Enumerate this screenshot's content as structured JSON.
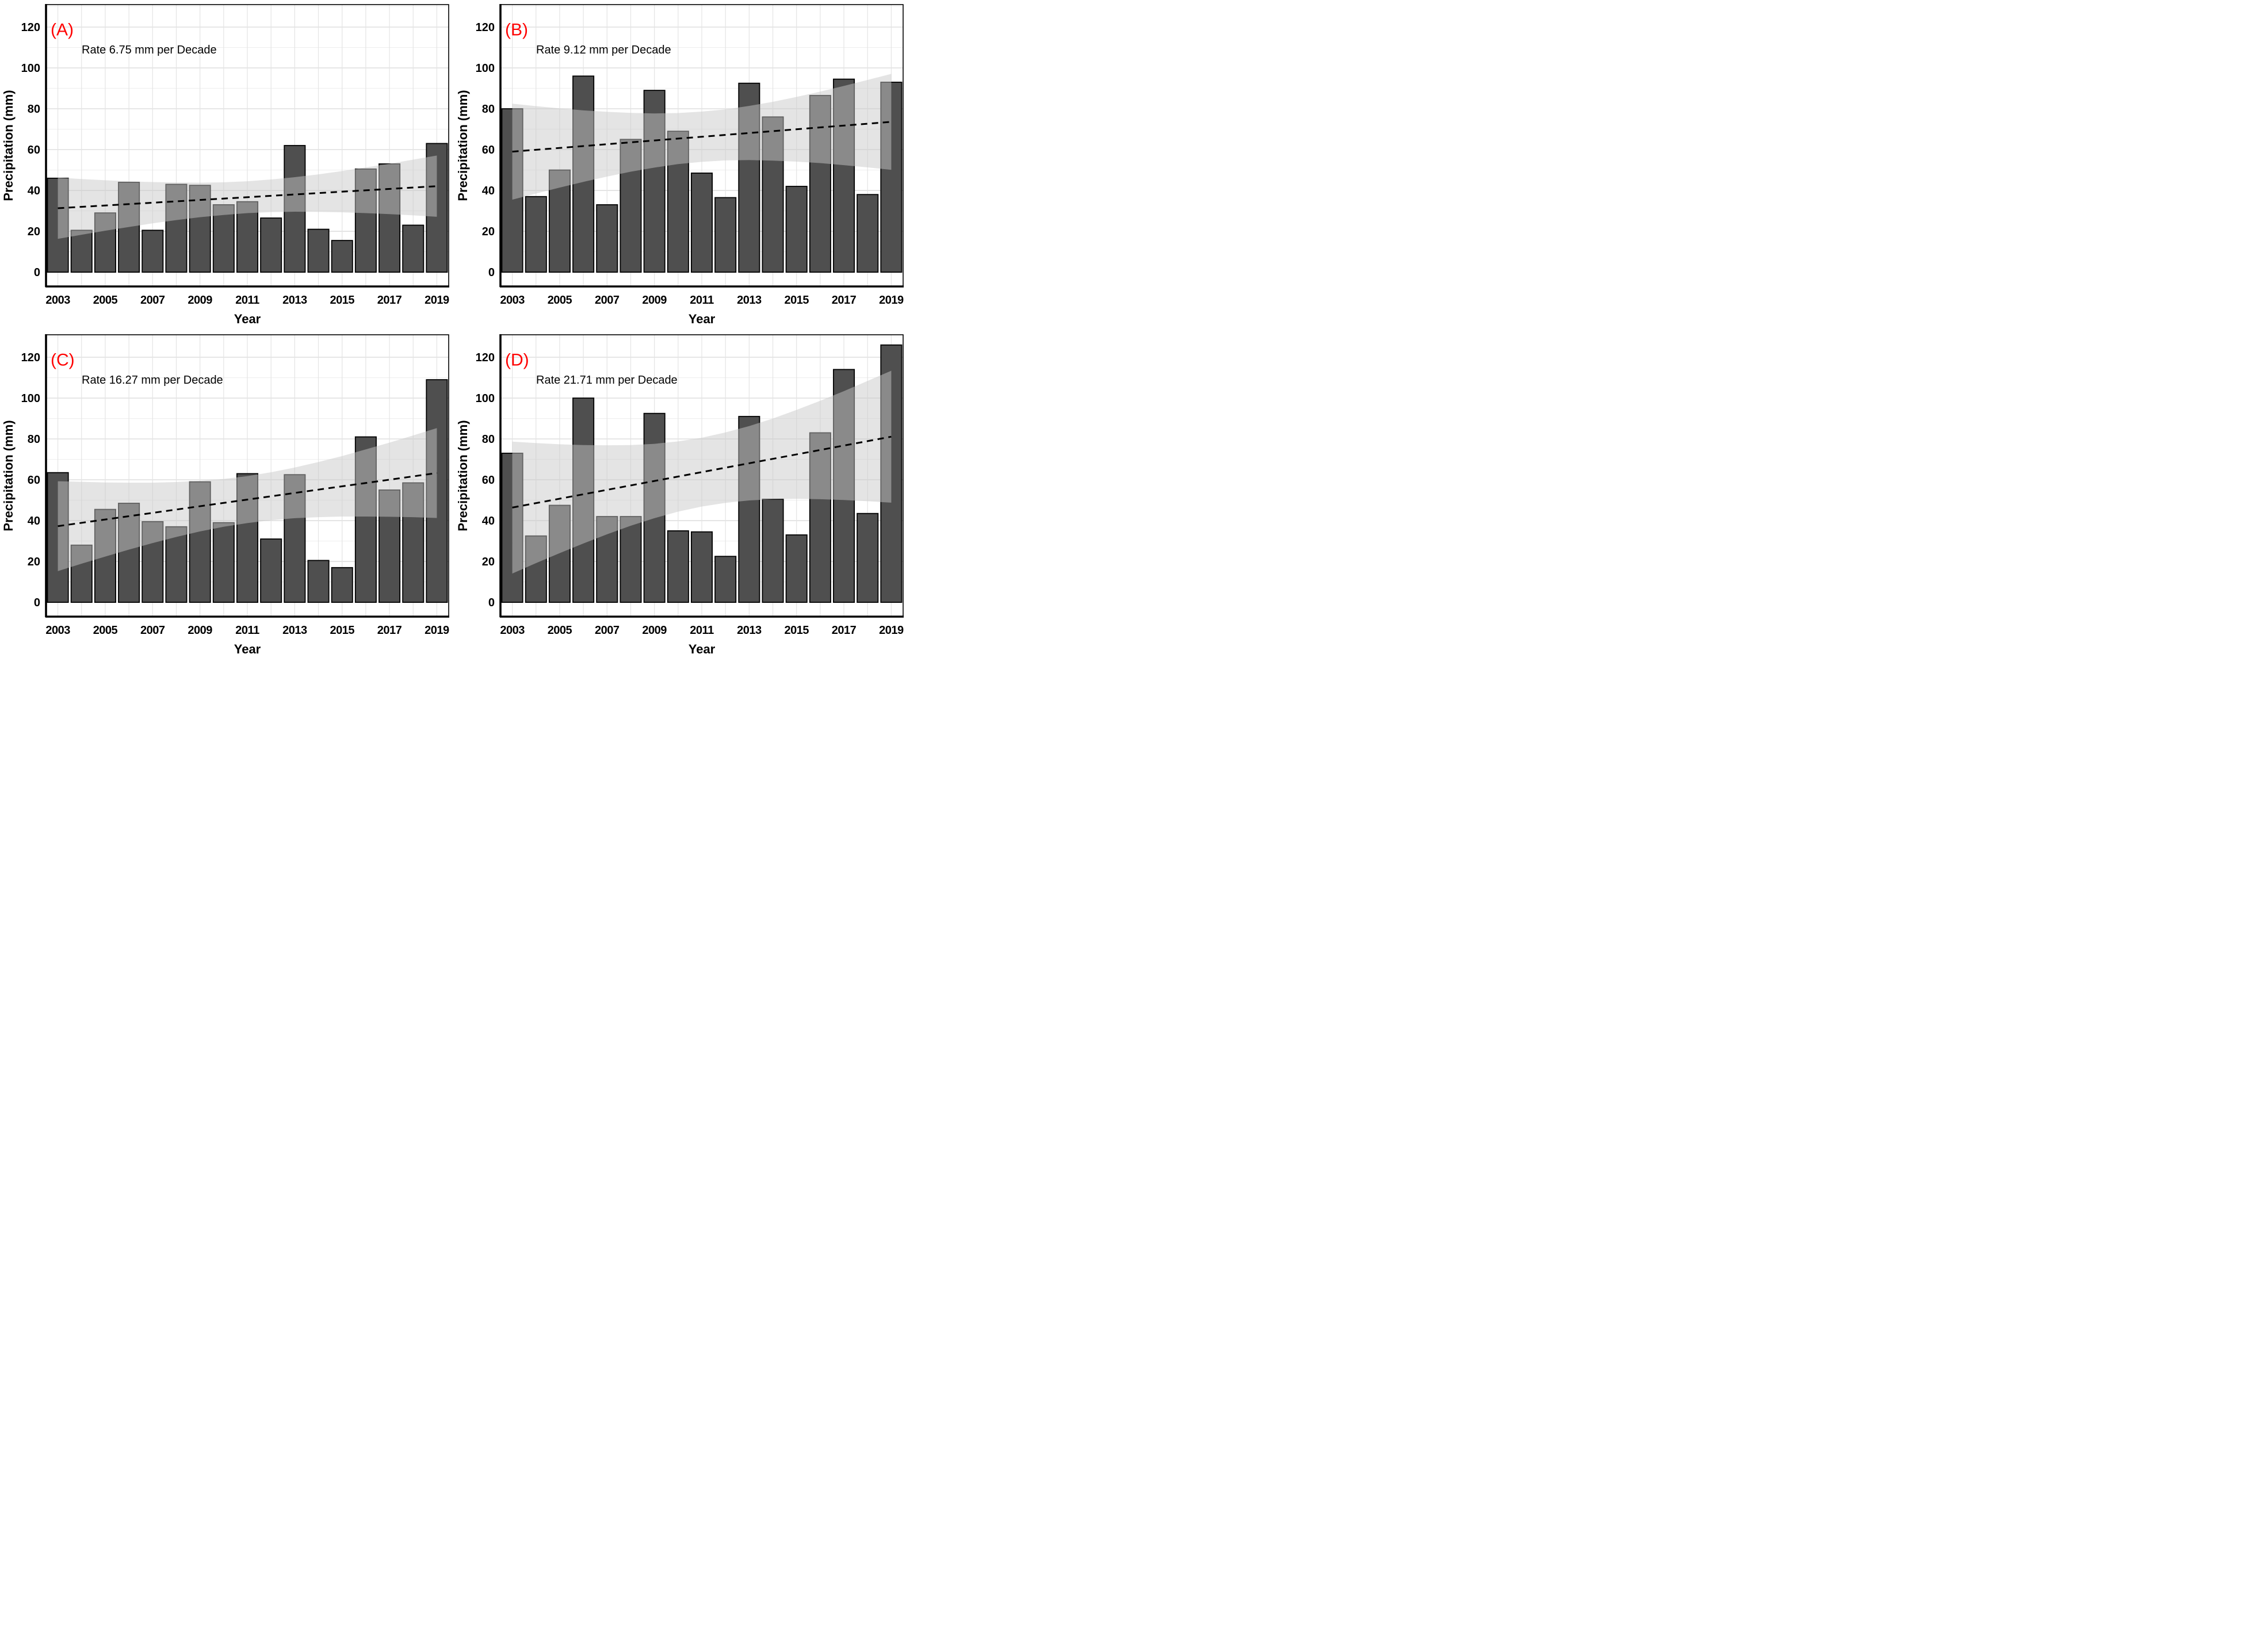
{
  "figure": {
    "background": "#ffffff",
    "x_axis_label": "Year",
    "y_axis_label": "Precipitation (mm)",
    "x_tick_labels": [
      "2003",
      "2005",
      "2007",
      "2009",
      "2011",
      "2013",
      "2015",
      "2017",
      "2019"
    ],
    "y_tick_labels": [
      "0",
      "20",
      "40",
      "60",
      "80",
      "100",
      "120"
    ]
  },
  "style": {
    "bar_fill": "#4f4f4f",
    "bar_stroke": "#000000",
    "ribbon_fill": "rgba(200,200,200,0.49)",
    "trend_color": "#000000",
    "panel_label_color": "#ff0000",
    "grid_minor": "#ededed",
    "grid_major": "#dcdcdc",
    "border_color": "#000000"
  },
  "chart_data": [
    {
      "type": "bar",
      "panel_label": "(A)",
      "annotation": "Rate 6.75 mm per Decade",
      "xlabel": "Year",
      "ylabel": "Precipitation (mm)",
      "x": [
        2003,
        2004,
        2005,
        2006,
        2007,
        2008,
        2009,
        2010,
        2011,
        2012,
        2013,
        2014,
        2015,
        2016,
        2017,
        2018,
        2019
      ],
      "values": [
        46,
        20.5,
        29,
        44,
        20.5,
        43,
        42.5,
        33,
        34.5,
        26.5,
        62,
        21,
        15.5,
        50.5,
        53,
        23,
        63
      ],
      "trend": {
        "start": 31.3,
        "end": 42.1
      },
      "ribbon_lower": [
        16.3,
        18.3,
        20.3,
        22.1,
        23.9,
        25.5,
        26.9,
        28.0,
        28.9,
        29.4,
        29.6,
        29.5,
        29.3,
        28.9,
        28.4,
        27.8,
        27.1
      ],
      "ribbon_upper": [
        46.3,
        45.6,
        45.0,
        44.5,
        44.1,
        43.9,
        43.8,
        44.0,
        44.5,
        45.4,
        46.5,
        47.9,
        49.5,
        51.3,
        53.1,
        55.1,
        57.1
      ],
      "y_ticks": [
        0,
        20,
        40,
        60,
        80,
        100,
        120
      ],
      "ylim": [
        -7,
        131
      ],
      "grid": true,
      "legend": "none"
    },
    {
      "type": "bar",
      "panel_label": "(B)",
      "annotation": "Rate 9.12 mm per Decade",
      "xlabel": "Year",
      "ylabel": "Precipitation (mm)",
      "x": [
        2003,
        2004,
        2005,
        2006,
        2007,
        2008,
        2009,
        2010,
        2011,
        2012,
        2013,
        2014,
        2015,
        2016,
        2017,
        2018,
        2019
      ],
      "values": [
        80,
        37,
        50,
        96,
        33,
        65,
        89,
        69,
        48.5,
        36.5,
        92.5,
        76,
        42,
        86.5,
        94.5,
        38,
        93
      ],
      "trend": {
        "start": 59.0,
        "end": 73.6
      },
      "ribbon_lower": [
        35.5,
        38.5,
        41.4,
        44.2,
        46.8,
        49.2,
        51.2,
        52.9,
        54.0,
        54.7,
        54.9,
        54.6,
        54.1,
        53.4,
        52.4,
        51.3,
        50.1
      ],
      "ribbon_upper": [
        82.5,
        81.3,
        80.2,
        79.2,
        78.5,
        78.0,
        77.7,
        77.9,
        78.6,
        79.7,
        81.4,
        83.4,
        85.8,
        88.4,
        91.2,
        94.1,
        97.1
      ],
      "y_ticks": [
        0,
        20,
        40,
        60,
        80,
        100,
        120
      ],
      "ylim": [
        -7,
        131
      ],
      "grid": true,
      "legend": "none"
    },
    {
      "type": "bar",
      "panel_label": "(C)",
      "annotation": "Rate 16.27 mm per Decade",
      "xlabel": "Year",
      "ylabel": "Precipitation (mm)",
      "x": [
        2003,
        2004,
        2005,
        2006,
        2007,
        2008,
        2009,
        2010,
        2011,
        2012,
        2013,
        2014,
        2015,
        2016,
        2017,
        2018,
        2019
      ],
      "values": [
        63.5,
        28,
        45.5,
        48.5,
        39.5,
        37,
        59,
        39,
        63,
        31,
        62.5,
        20.5,
        17,
        81,
        55,
        58.5,
        109
      ],
      "trend": {
        "start": 37.3,
        "end": 63.3
      },
      "ribbon_lower": [
        15.3,
        18.9,
        22.4,
        25.8,
        29.0,
        32.0,
        34.7,
        37.0,
        38.8,
        40.2,
        41.2,
        41.7,
        42.0,
        42.0,
        41.9,
        41.7,
        41.3
      ],
      "ribbon_upper": [
        59.3,
        59.0,
        58.7,
        58.6,
        58.6,
        58.9,
        59.5,
        60.4,
        61.8,
        63.7,
        66.0,
        68.7,
        71.6,
        74.9,
        78.2,
        81.7,
        85.3
      ],
      "y_ticks": [
        0,
        20,
        40,
        60,
        80,
        100,
        120
      ],
      "ylim": [
        -7,
        131
      ],
      "grid": true,
      "legend": "none"
    },
    {
      "type": "bar",
      "panel_label": "(D)",
      "annotation": "Rate 21.71 mm per Decade",
      "xlabel": "Year",
      "ylabel": "Precipitation (mm)",
      "x": [
        2003,
        2004,
        2005,
        2006,
        2007,
        2008,
        2009,
        2010,
        2011,
        2012,
        2013,
        2014,
        2015,
        2016,
        2017,
        2018,
        2019
      ],
      "values": [
        73,
        32.5,
        47.5,
        100,
        42,
        42,
        92.5,
        35,
        34.5,
        22.5,
        91,
        50.5,
        33,
        83,
        114,
        43.5,
        126
      ],
      "trend": {
        "start": 46.4,
        "end": 81.1
      },
      "ribbon_lower": [
        14.1,
        19.2,
        24.1,
        28.8,
        33.3,
        37.5,
        41.2,
        44.4,
        46.9,
        48.7,
        49.9,
        50.5,
        50.7,
        50.5,
        50.1,
        49.5,
        48.8
      ],
      "ribbon_upper": [
        78.7,
        78.0,
        77.4,
        77.0,
        76.9,
        77.0,
        77.6,
        78.8,
        80.6,
        83.2,
        86.3,
        90.0,
        94.2,
        98.7,
        103.4,
        108.4,
        113.4
      ],
      "y_ticks": [
        0,
        20,
        40,
        60,
        80,
        100,
        120
      ],
      "ylim": [
        -7,
        131
      ],
      "grid": true,
      "legend": "none"
    }
  ]
}
